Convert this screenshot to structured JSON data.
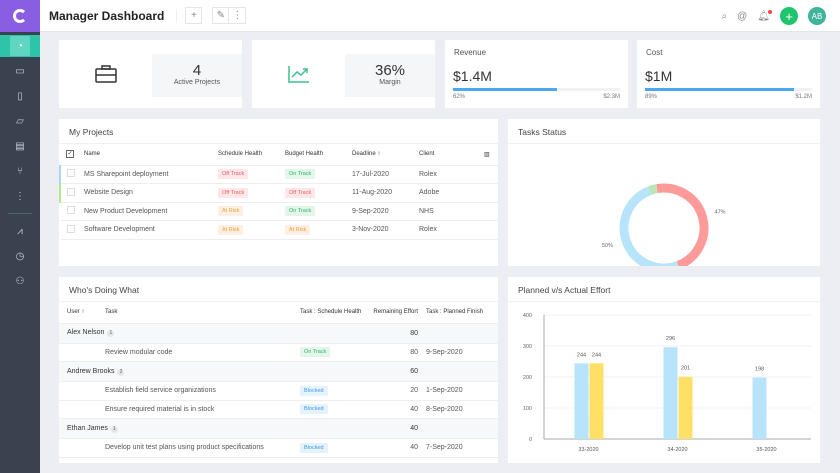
{
  "app": {
    "title": "Manager Dashboard",
    "avatar": "AB"
  },
  "sidebar": {
    "items": [
      "dashboard",
      "briefcase",
      "clipboard",
      "presentation",
      "document",
      "branch",
      "more",
      "chart",
      "clock",
      "user-check"
    ]
  },
  "kpis": [
    {
      "value": "4",
      "label": "Active Projects",
      "icon": "briefcase-icon"
    },
    {
      "value": "36%",
      "label": "Margin",
      "icon": "trending-up-icon"
    }
  ],
  "metrics": [
    {
      "label": "Revenue",
      "value": "$1.4M",
      "percent": 62,
      "percent_label": "62%",
      "max": "$2.3M"
    },
    {
      "label": "Cost",
      "value": "$1M",
      "percent": 89,
      "percent_label": "89%",
      "max": "$1.2M"
    }
  ],
  "projects": {
    "title": "My Projects",
    "columns": [
      "Name",
      "Schedule Health",
      "Budget Health",
      "Deadline",
      "Client"
    ],
    "rows": [
      {
        "name": "MS Sharepoint deployment",
        "schedule": "Off Track",
        "budget": "On Track",
        "deadline": "17-Jul-2020",
        "client": "Rolex",
        "marker": "#a9d8f5"
      },
      {
        "name": "Website Design",
        "schedule": "Off Track",
        "budget": "Off Track",
        "deadline": "11-Aug-2020",
        "client": "Adobe",
        "marker": "#b8e986"
      },
      {
        "name": "New Product Development",
        "schedule": "At Risk",
        "budget": "On Track",
        "deadline": "9-Sep-2020",
        "client": "NHS",
        "marker": ""
      },
      {
        "name": "Software Development",
        "schedule": "At Risk",
        "budget": "At Risk",
        "deadline": "3-Nov-2020",
        "client": "Rolex",
        "marker": ""
      }
    ]
  },
  "who": {
    "title": "Who's Doing What",
    "columns": [
      "User",
      "Task",
      "Task : Schedule Health",
      "Remaining Effort",
      "Task : Planned Finish"
    ],
    "groups": [
      {
        "user": "Alex Nelson",
        "count": "1",
        "effort": "80",
        "tasks": [
          {
            "task": "Review modular code",
            "health": "On Track",
            "effort": "80",
            "finish": "9-Sep-2020"
          }
        ]
      },
      {
        "user": "Andrew Brooks",
        "count": "2",
        "effort": "60",
        "tasks": [
          {
            "task": "Establish field service organizations",
            "health": "Blocked",
            "effort": "20",
            "finish": "1-Sep-2020"
          },
          {
            "task": "Ensure required material is in stock",
            "health": "Blocked",
            "effort": "40",
            "finish": "8-Sep-2020"
          }
        ]
      },
      {
        "user": "Ethan James",
        "count": "1",
        "effort": "40",
        "tasks": [
          {
            "task": "Develop unit test plans using product specifications",
            "health": "Blocked",
            "effort": "40",
            "finish": "7-Sep-2020"
          }
        ]
      }
    ]
  },
  "chart_data": [
    {
      "type": "pie",
      "title": "Tasks Status",
      "donut": true,
      "slices": [
        {
          "value": 47,
          "label": "47%",
          "color": "#ff9a9a"
        },
        {
          "value": 50,
          "label": "50%",
          "color": "#b7e3fb"
        },
        {
          "value": 3,
          "label": "",
          "color": "#b9e8b4"
        }
      ]
    },
    {
      "type": "bar",
      "title": "Planned v/s Actual Effort",
      "categories": [
        "33-2020",
        "34-2020",
        "35-2020"
      ],
      "ylim": [
        0,
        400
      ],
      "yticks": [
        0,
        100,
        200,
        300,
        400
      ],
      "grid": true,
      "series": [
        {
          "values": [
            244,
            296,
            198
          ],
          "color": "#b7e3fb"
        },
        {
          "values": [
            244,
            201,
            null
          ],
          "color": "#ffe066"
        }
      ]
    }
  ]
}
